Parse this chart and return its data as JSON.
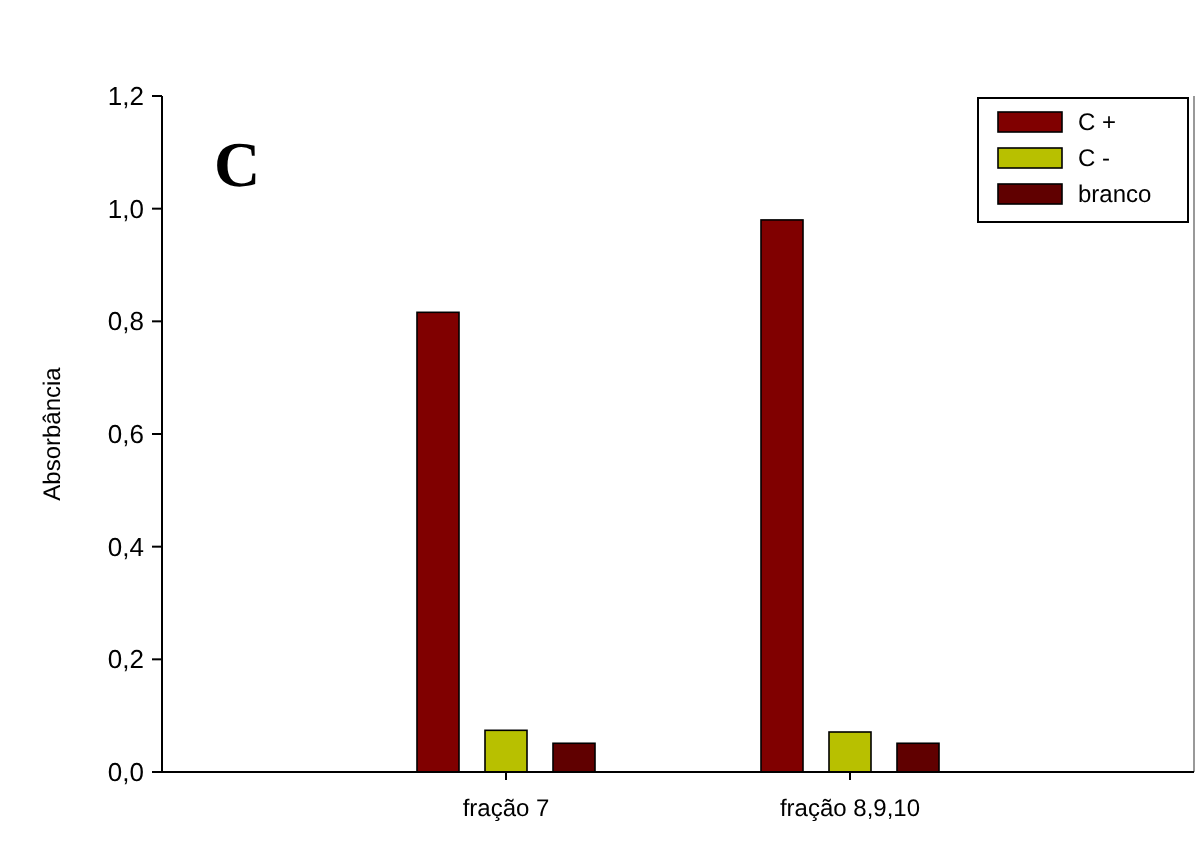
{
  "chart_data": {
    "type": "bar",
    "ylabel": "Absorbância",
    "annotations": [
      "C"
    ],
    "categories": [
      "fração 7",
      "fração 8,9,10"
    ],
    "series": [
      {
        "name": "C +",
        "color": "#800000",
        "values": [
          0.816,
          0.98
        ]
      },
      {
        "name": "C -",
        "color": "#b8c000",
        "values": [
          0.074,
          0.071
        ]
      },
      {
        "name": "branco",
        "color": "#600000",
        "values": [
          0.051,
          0.051
        ]
      }
    ],
    "ylim": [
      0,
      1.2
    ],
    "yticks": [
      {
        "value": 0,
        "label": "0,0"
      },
      {
        "value": 0.2,
        "label": "0,2"
      },
      {
        "value": 0.4,
        "label": "0,4"
      },
      {
        "value": 0.6,
        "label": "0,6"
      },
      {
        "value": 0.8,
        "label": "0,8"
      },
      {
        "value": 1,
        "label": "1,0"
      },
      {
        "value": 1.2,
        "label": "1,2"
      }
    ],
    "legend": "top right"
  }
}
